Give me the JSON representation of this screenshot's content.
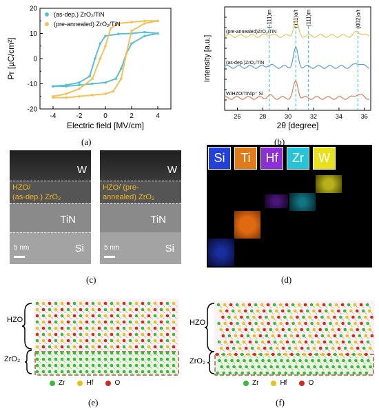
{
  "labels": {
    "a": "(a)",
    "b": "(b)",
    "c": "(c)",
    "d": "(d)",
    "e": "(e)",
    "f": "(f)"
  },
  "chart_data": [
    {
      "type": "line",
      "ylabel": "Pr [µC/cm²]",
      "xlabel": "Electric field [MV/cm]",
      "xlim": [
        -5,
        5
      ],
      "ylim": [
        -20,
        20
      ],
      "xticks": [
        "-4",
        "-2",
        "0",
        "2",
        "4"
      ],
      "yticks": [
        "-20",
        "-10",
        "0",
        "10",
        "20"
      ],
      "yticks_extra": [
        "-15",
        "-5",
        "5",
        "15"
      ],
      "legend": "top-left",
      "series": [
        {
          "name": "(as-dep.) ZrO₂/TiN",
          "color": "#5bc0d0",
          "upper": [
            [
              -4,
              -11
            ],
            [
              -3,
              -10.5
            ],
            [
              -2,
              -9.5
            ],
            [
              -1.2,
              -7
            ],
            [
              -0.8,
              0
            ],
            [
              -0.4,
              6
            ],
            [
              0,
              9
            ],
            [
              1,
              9.8
            ],
            [
              2,
              10
            ],
            [
              3,
              10.5
            ],
            [
              4,
              10
            ]
          ],
          "lower": [
            [
              4,
              10
            ],
            [
              3,
              9
            ],
            [
              2,
              6
            ],
            [
              1.6,
              2
            ],
            [
              1.2,
              -4
            ],
            [
              0.8,
              -8
            ],
            [
              0,
              -9.5
            ],
            [
              -1,
              -10
            ],
            [
              -2,
              -10.5
            ],
            [
              -3,
              -11
            ],
            [
              -4,
              -11
            ]
          ]
        },
        {
          "name": "(pre-annealed) ZrO₂/TiN",
          "color": "#f2c25a",
          "upper": [
            [
              -4,
              -15
            ],
            [
              -3,
              -14
            ],
            [
              -2,
              -12
            ],
            [
              -1,
              -8
            ],
            [
              -0.4,
              0
            ],
            [
              0,
              5
            ],
            [
              0.4,
              12
            ],
            [
              1,
              14
            ],
            [
              2,
              14.5
            ],
            [
              3,
              15
            ],
            [
              4,
              15
            ]
          ],
          "lower": [
            [
              4,
              15
            ],
            [
              3,
              14
            ],
            [
              2,
              11
            ],
            [
              1.6,
              2
            ],
            [
              1.2,
              -8
            ],
            [
              0.6,
              -13
            ],
            [
              0,
              -14
            ],
            [
              -1,
              -14.5
            ],
            [
              -2,
              -15
            ],
            [
              -3,
              -15.5
            ],
            [
              -4,
              -15.5
            ]
          ]
        }
      ]
    },
    {
      "type": "line",
      "ylabel": "Intensity [a.u.]",
      "xlabel": "2θ [degree]",
      "xlim": [
        25,
        36.5
      ],
      "xticks": [
        "26",
        "28",
        "30",
        "32",
        "34",
        "36"
      ],
      "peaks": [
        "(-111)m",
        "(111)o/t",
        "(111)m",
        "(002)o/t"
      ],
      "peak_positions": [
        28.5,
        30.6,
        31.6,
        35.5
      ],
      "series": [
        {
          "name": "(pre-annealed)ZrO₂/TiN",
          "color": "#f2c25a",
          "offset": 0.72,
          "peak_height": 0.14
        },
        {
          "name": "(as-dep.)ZrO₂/TiN",
          "color": "#5b9bd5",
          "offset": 0.42,
          "peak_height": 0.18
        },
        {
          "name": "W/HZO/TiN/p⁺ Si",
          "color": "#e07b5a",
          "offset": 0.12,
          "peak_height": 0.16
        }
      ]
    }
  ],
  "tem": {
    "left": {
      "w": "W",
      "hzo_line1": "HZO/",
      "hzo_line2": "(as-dep.) ZrO₂",
      "tin": "TiN",
      "si": "Si",
      "scale": "5 nm"
    },
    "right": {
      "w": "W",
      "hzo_line1": "HZO/ (pre-",
      "hzo_line2": "annealed) ZrO₂",
      "tin": "TiN",
      "si": "Si",
      "scale": "5 nm"
    }
  },
  "eds": {
    "elements": [
      {
        "sym": "Si",
        "bg": "#2340d8"
      },
      {
        "sym": "Ti",
        "bg": "#e07a1a"
      },
      {
        "sym": "Hf",
        "bg": "#8b2fd6"
      },
      {
        "sym": "Zr",
        "bg": "#27c3d8"
      },
      {
        "sym": "W",
        "bg": "#e8e21e"
      }
    ]
  },
  "models": {
    "left": {
      "hzo": "HZO",
      "zro": "ZrO₂",
      "legend": [
        {
          "sym": "Zr",
          "color": "#3cb83c"
        },
        {
          "sym": "Hf",
          "color": "#e8c21a"
        },
        {
          "sym": "O",
          "color": "#d4281e"
        }
      ]
    },
    "right": {
      "hzo": "HZO",
      "zro": "ZrO₂",
      "legend": [
        {
          "sym": "Zr",
          "color": "#3cb83c"
        },
        {
          "sym": "Hf",
          "color": "#e8c21a"
        },
        {
          "sym": "O",
          "color": "#d4281e"
        }
      ]
    }
  }
}
